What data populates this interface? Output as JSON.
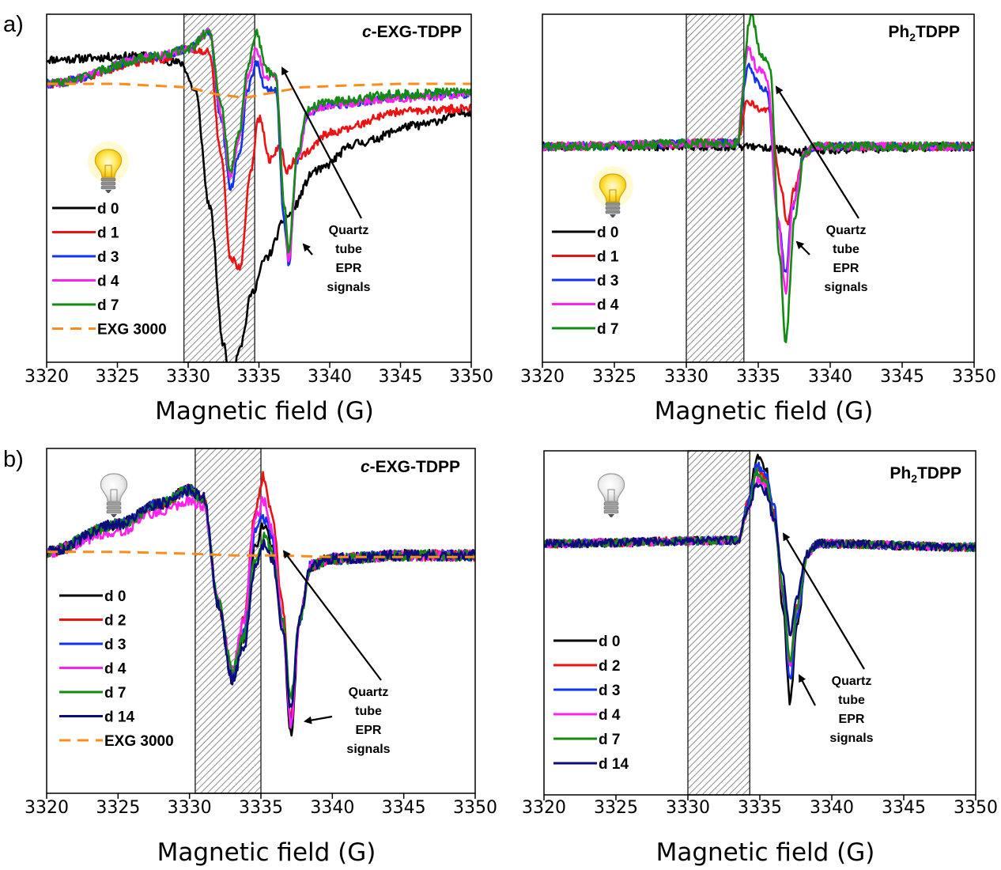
{
  "panel_labels": [
    "a)",
    "b)"
  ],
  "chart_data": [
    {
      "type": "line",
      "title": "c-EXG-TDPP",
      "title_prefix": "c",
      "title_rest": "-EXG-TDPP",
      "xlabel": "Magnetic field (G)",
      "ylabel": "",
      "xlim": [
        3320,
        3350
      ],
      "xticks": [
        3320,
        3325,
        3330,
        3335,
        3340,
        3345,
        3350
      ],
      "shaded_region": [
        3329.7,
        3334.7
      ],
      "light_state": "on",
      "annotation": "Quartz tube EPR signals",
      "annotation_lines": [
        "Quartz",
        "tube",
        "EPR",
        "signals"
      ],
      "series": [
        {
          "name": "d 0",
          "color": "#000000",
          "dash": false,
          "noise": 0.012,
          "x": [
            3320,
            3327,
            3329.5,
            3330.5,
            3331.5,
            3332.5,
            3333,
            3333.7,
            3334.5,
            3335.5,
            3337,
            3339,
            3342,
            3346,
            3350
          ],
          "y": [
            0.87,
            0.88,
            0.86,
            0.78,
            0.45,
            0.05,
            -0.05,
            0.05,
            0.2,
            0.3,
            0.42,
            0.55,
            0.63,
            0.68,
            0.72
          ]
        },
        {
          "name": "d 1",
          "color": "#ee1111",
          "dash": false,
          "noise": 0.012,
          "x": [
            3320,
            3328,
            3330,
            3331.5,
            3332.3,
            3333,
            3333.7,
            3334.4,
            3335,
            3335.8,
            3336.5,
            3337,
            3337.6,
            3338.2,
            3340,
            3345,
            3350
          ],
          "y": [
            0.8,
            0.87,
            0.9,
            0.89,
            0.6,
            0.3,
            0.27,
            0.55,
            0.7,
            0.58,
            0.62,
            0.55,
            0.58,
            0.6,
            0.66,
            0.72,
            0.73
          ]
        },
        {
          "name": "d 3",
          "color": "#1133ee",
          "dash": false,
          "noise": 0.012,
          "x": [
            3320,
            3328,
            3330,
            3331.5,
            3332.3,
            3333,
            3333.6,
            3334.2,
            3334.8,
            3335.5,
            3336.2,
            3336.8,
            3337.1,
            3337.7,
            3338.5,
            3340,
            3345,
            3350
          ],
          "y": [
            0.8,
            0.88,
            0.9,
            0.95,
            0.7,
            0.5,
            0.6,
            0.78,
            0.86,
            0.78,
            0.78,
            0.4,
            0.28,
            0.58,
            0.72,
            0.74,
            0.76,
            0.77
          ]
        },
        {
          "name": "d 4",
          "color": "#ff22ee",
          "dash": false,
          "noise": 0.012,
          "x": [
            3320,
            3328,
            3330,
            3331.5,
            3332.3,
            3333,
            3333.6,
            3334.2,
            3334.8,
            3335.5,
            3336.2,
            3336.8,
            3337.1,
            3337.7,
            3338.5,
            3340,
            3345,
            3350
          ],
          "y": [
            0.8,
            0.88,
            0.9,
            0.95,
            0.72,
            0.53,
            0.65,
            0.82,
            0.9,
            0.82,
            0.82,
            0.45,
            0.28,
            0.58,
            0.72,
            0.74,
            0.76,
            0.77
          ]
        },
        {
          "name": "d 7",
          "color": "#138a13",
          "dash": false,
          "noise": 0.013,
          "x": [
            3320,
            3328,
            3330,
            3331.5,
            3332.3,
            3333,
            3333.6,
            3334.2,
            3334.8,
            3335.5,
            3336.2,
            3336.8,
            3337.1,
            3337.7,
            3338.5,
            3340,
            3345,
            3350
          ],
          "y": [
            0.8,
            0.88,
            0.9,
            0.95,
            0.75,
            0.55,
            0.66,
            0.85,
            0.95,
            0.84,
            0.82,
            0.45,
            0.32,
            0.6,
            0.73,
            0.75,
            0.77,
            0.78
          ]
        },
        {
          "name": "EXG 3000",
          "color": "#ff8c1a",
          "dash": true,
          "noise": 0,
          "x": [
            3320,
            3325,
            3330,
            3332,
            3334,
            3336,
            3338,
            3341,
            3345,
            3350
          ],
          "y": [
            0.8,
            0.8,
            0.79,
            0.77,
            0.76,
            0.775,
            0.79,
            0.795,
            0.8,
            0.8
          ]
        }
      ]
    },
    {
      "type": "line",
      "title": "Ph2TDPP",
      "title_main": "Ph",
      "title_sub": "2",
      "title_rest": "TDPP",
      "xlabel": "Magnetic field (G)",
      "ylabel": "",
      "xlim": [
        3320,
        3350
      ],
      "xticks": [
        3320,
        3325,
        3330,
        3335,
        3340,
        3345,
        3350
      ],
      "shaded_region": [
        3330,
        3334
      ],
      "light_state": "on",
      "annotation": "Quartz tube EPR signals",
      "annotation_lines": [
        "Quartz",
        "tube",
        "EPR",
        "signals"
      ],
      "series": [
        {
          "name": "d 0",
          "color": "#000000",
          "dash": false,
          "noise": 0.012,
          "x": [
            3320,
            3333,
            3335,
            3336.5,
            3337.5,
            3338.5,
            3350
          ],
          "y": [
            0.62,
            0.62,
            0.62,
            0.61,
            0.6,
            0.61,
            0.62
          ]
        },
        {
          "name": "d 1",
          "color": "#ee1111",
          "dash": false,
          "noise": 0.012,
          "x": [
            3320,
            3333.5,
            3334.3,
            3335,
            3335.8,
            3336.6,
            3337,
            3337.5,
            3338.2,
            3339,
            3350
          ],
          "y": [
            0.62,
            0.63,
            0.75,
            0.73,
            0.72,
            0.5,
            0.4,
            0.5,
            0.6,
            0.62,
            0.62
          ]
        },
        {
          "name": "d 3",
          "color": "#1133ee",
          "dash": false,
          "noise": 0.012,
          "x": [
            3320,
            3333.5,
            3334.3,
            3335,
            3335.6,
            3336.4,
            3336.9,
            3337.4,
            3338.2,
            3339,
            3350
          ],
          "y": [
            0.62,
            0.63,
            0.85,
            0.8,
            0.78,
            0.4,
            0.25,
            0.45,
            0.6,
            0.62,
            0.62
          ]
        },
        {
          "name": "d 4",
          "color": "#ff22ee",
          "dash": false,
          "noise": 0.012,
          "x": [
            3320,
            3333.5,
            3334.3,
            3335,
            3335.6,
            3336.4,
            3336.9,
            3337.4,
            3338.2,
            3339,
            3350
          ],
          "y": [
            0.62,
            0.63,
            0.9,
            0.84,
            0.82,
            0.4,
            0.2,
            0.45,
            0.6,
            0.62,
            0.62
          ]
        },
        {
          "name": "d 7",
          "color": "#138a13",
          "dash": false,
          "noise": 0.013,
          "x": [
            3320,
            3333.5,
            3334.5,
            3335.2,
            3335.8,
            3336.5,
            3336.9,
            3337.5,
            3338.2,
            3339,
            3350
          ],
          "y": [
            0.62,
            0.63,
            1.0,
            0.88,
            0.85,
            0.3,
            0.05,
            0.4,
            0.6,
            0.62,
            0.62
          ]
        }
      ]
    },
    {
      "type": "line",
      "title": "c-EXG-TDPP",
      "title_prefix": "c",
      "title_rest": "-EXG-TDPP",
      "xlabel": "Magnetic field (G)",
      "ylabel": "",
      "xlim": [
        3320,
        3350
      ],
      "xticks": [
        3320,
        3325,
        3330,
        3335,
        3340,
        3345,
        3350
      ],
      "shaded_region": [
        3330.4,
        3335
      ],
      "light_state": "off",
      "annotation": "Quartz tube EPR signals",
      "annotation_lines": [
        "Quartz",
        "tube",
        "EPR",
        "signals"
      ],
      "series": [
        {
          "name": "d 0",
          "color": "#000000",
          "dash": false,
          "noise": 0.016,
          "x": [
            3320,
            3325,
            3328,
            3330,
            3331,
            3332,
            3333,
            3333.8,
            3334.6,
            3335.2,
            3335.8,
            3336.5,
            3337.1,
            3337.7,
            3338.5,
            3340,
            3345,
            3350
          ],
          "y": [
            0.7,
            0.78,
            0.84,
            0.88,
            0.85,
            0.55,
            0.33,
            0.45,
            0.72,
            0.78,
            0.72,
            0.5,
            0.17,
            0.5,
            0.66,
            0.68,
            0.69,
            0.69
          ]
        },
        {
          "name": "d 2",
          "color": "#ee1111",
          "dash": false,
          "noise": 0.016,
          "x": [
            3320,
            3325,
            3328,
            3330,
            3331,
            3332,
            3333,
            3333.8,
            3334.6,
            3335.2,
            3335.8,
            3336.5,
            3337.1,
            3337.7,
            3338.5,
            3340,
            3345,
            3350
          ],
          "y": [
            0.7,
            0.78,
            0.84,
            0.88,
            0.85,
            0.56,
            0.35,
            0.5,
            0.82,
            0.92,
            0.8,
            0.55,
            0.22,
            0.5,
            0.66,
            0.68,
            0.69,
            0.69
          ]
        },
        {
          "name": "d 3",
          "color": "#1133ee",
          "dash": false,
          "noise": 0.016,
          "x": [
            3320,
            3325,
            3328,
            3330,
            3331,
            3332,
            3333,
            3333.8,
            3334.6,
            3335.2,
            3335.8,
            3336.5,
            3337.1,
            3337.7,
            3338.5,
            3340,
            3345,
            3350
          ],
          "y": [
            0.7,
            0.78,
            0.84,
            0.88,
            0.85,
            0.55,
            0.34,
            0.46,
            0.76,
            0.8,
            0.74,
            0.5,
            0.2,
            0.5,
            0.66,
            0.68,
            0.69,
            0.69
          ]
        },
        {
          "name": "d 4",
          "color": "#ff22ee",
          "dash": false,
          "noise": 0.016,
          "x": [
            3320,
            3325,
            3328,
            3330,
            3331,
            3332,
            3333,
            3333.8,
            3334.6,
            3335.2,
            3335.8,
            3336.5,
            3337.1,
            3337.7,
            3338.5,
            3340,
            3345,
            3350
          ],
          "y": [
            0.7,
            0.76,
            0.82,
            0.85,
            0.83,
            0.56,
            0.36,
            0.5,
            0.8,
            0.85,
            0.76,
            0.5,
            0.2,
            0.5,
            0.66,
            0.68,
            0.69,
            0.69
          ]
        },
        {
          "name": "d 7",
          "color": "#138a13",
          "dash": false,
          "noise": 0.016,
          "x": [
            3320,
            3325,
            3328,
            3330,
            3331,
            3332,
            3333,
            3333.8,
            3334.6,
            3335.2,
            3335.8,
            3336.5,
            3337.1,
            3337.7,
            3338.5,
            3340,
            3345,
            3350
          ],
          "y": [
            0.7,
            0.78,
            0.84,
            0.88,
            0.85,
            0.56,
            0.36,
            0.45,
            0.68,
            0.74,
            0.7,
            0.5,
            0.28,
            0.5,
            0.66,
            0.68,
            0.69,
            0.69
          ]
        },
        {
          "name": "d 14",
          "color": "#0c0c7a",
          "dash": false,
          "noise": 0.016,
          "x": [
            3320,
            3325,
            3328,
            3330,
            3331,
            3332,
            3333,
            3333.8,
            3334.6,
            3335.2,
            3335.8,
            3336.5,
            3337.1,
            3337.7,
            3338.5,
            3340,
            3345,
            3350
          ],
          "y": [
            0.7,
            0.78,
            0.84,
            0.88,
            0.86,
            0.55,
            0.33,
            0.42,
            0.66,
            0.72,
            0.68,
            0.48,
            0.24,
            0.5,
            0.66,
            0.68,
            0.69,
            0.69
          ]
        },
        {
          "name": "EXG 3000",
          "color": "#ff8c1a",
          "dash": true,
          "noise": 0,
          "x": [
            3320,
            3325,
            3330,
            3333,
            3336,
            3340,
            3345,
            3350
          ],
          "y": [
            0.7,
            0.7,
            0.695,
            0.69,
            0.69,
            0.685,
            0.685,
            0.685
          ]
        }
      ]
    },
    {
      "type": "line",
      "title": "Ph2TDPP",
      "title_main": "Ph",
      "title_sub": "2",
      "title_rest": "TDPP",
      "xlabel": "Magnetic field (G)",
      "ylabel": "",
      "xlim": [
        3320,
        3350
      ],
      "xticks": [
        3320,
        3325,
        3330,
        3335,
        3340,
        3345,
        3350
      ],
      "shaded_region": [
        3330,
        3334.3
      ],
      "light_state": "off",
      "annotation": "Quartz tube EPR signals",
      "annotation_lines": [
        "Quartz",
        "tube",
        "EPR",
        "signals"
      ],
      "series": [
        {
          "name": "d 0",
          "color": "#000000",
          "dash": false,
          "noise": 0.012,
          "x": [
            3320,
            3333.5,
            3334.2,
            3334.8,
            3335.4,
            3336,
            3336.6,
            3337.1,
            3337.6,
            3338.3,
            3339,
            3350
          ],
          "y": [
            0.73,
            0.74,
            0.85,
            0.98,
            0.95,
            0.82,
            0.55,
            0.27,
            0.5,
            0.7,
            0.73,
            0.72
          ]
        },
        {
          "name": "d 2",
          "color": "#ee1111",
          "dash": false,
          "noise": 0.012,
          "x": [
            3320,
            3333.5,
            3334.2,
            3334.8,
            3335.4,
            3336,
            3336.6,
            3337.1,
            3337.6,
            3338.3,
            3339,
            3350
          ],
          "y": [
            0.73,
            0.74,
            0.85,
            0.95,
            0.92,
            0.82,
            0.58,
            0.38,
            0.55,
            0.7,
            0.73,
            0.72
          ]
        },
        {
          "name": "d 3",
          "color": "#1133ee",
          "dash": false,
          "noise": 0.012,
          "x": [
            3320,
            3333.5,
            3334.2,
            3334.8,
            3335.4,
            3336,
            3336.6,
            3337.1,
            3337.6,
            3338.3,
            3339,
            3350
          ],
          "y": [
            0.73,
            0.74,
            0.85,
            0.96,
            0.93,
            0.84,
            0.58,
            0.33,
            0.52,
            0.7,
            0.73,
            0.72
          ]
        },
        {
          "name": "d 4",
          "color": "#ff22ee",
          "dash": false,
          "noise": 0.012,
          "x": [
            3320,
            3333.5,
            3334.2,
            3334.8,
            3335.4,
            3336,
            3336.6,
            3337.1,
            3337.6,
            3338.3,
            3339,
            3350
          ],
          "y": [
            0.73,
            0.74,
            0.83,
            0.92,
            0.9,
            0.8,
            0.6,
            0.38,
            0.55,
            0.7,
            0.73,
            0.72
          ]
        },
        {
          "name": "d 7",
          "color": "#138a13",
          "dash": false,
          "noise": 0.012,
          "x": [
            3320,
            3333.5,
            3334.2,
            3334.8,
            3335.4,
            3336,
            3336.6,
            3337.1,
            3337.6,
            3338.3,
            3339,
            3350
          ],
          "y": [
            0.73,
            0.74,
            0.83,
            0.94,
            0.91,
            0.8,
            0.6,
            0.38,
            0.55,
            0.7,
            0.73,
            0.72
          ]
        },
        {
          "name": "d 14",
          "color": "#0c0c7a",
          "dash": false,
          "noise": 0.012,
          "x": [
            3320,
            3333.5,
            3334.2,
            3334.8,
            3335.4,
            3336,
            3336.6,
            3337.1,
            3337.6,
            3338.3,
            3339,
            3350
          ],
          "y": [
            0.73,
            0.74,
            0.83,
            0.9,
            0.88,
            0.8,
            0.64,
            0.47,
            0.58,
            0.7,
            0.73,
            0.72
          ]
        }
      ]
    }
  ]
}
